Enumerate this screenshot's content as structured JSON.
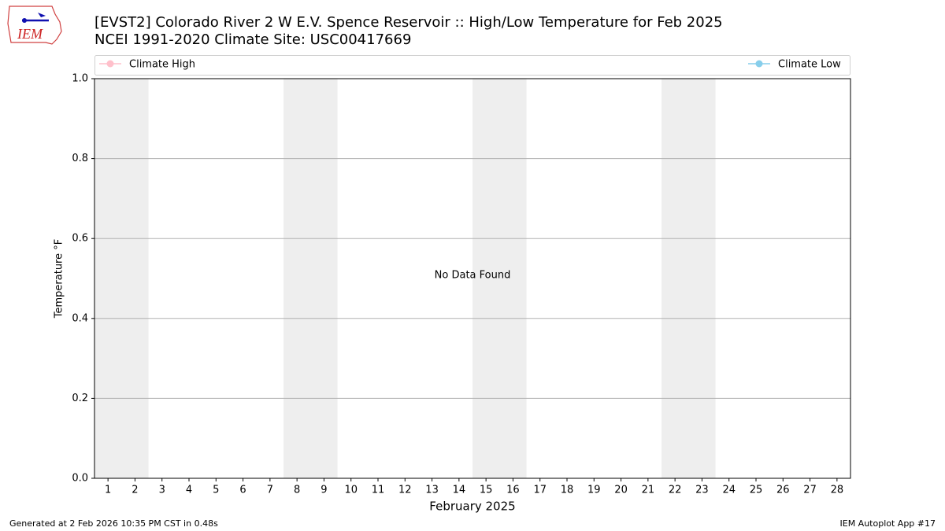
{
  "logo_text": "IEM",
  "footer_left": "Generated at 2 Feb 2026 10:35 PM CST in 0.48s",
  "footer_right": "IEM Autoplot App #17",
  "chart_data": {
    "type": "line",
    "title": "[EVST2] Colorado River 2 W E.V. Spence Reservoir :: High/Low Temperature for Feb 2025",
    "subtitle": "NCEI 1991-2020 Climate Site: USC00417669",
    "xlabel": "February 2025",
    "ylabel": "Temperature °F",
    "annotation": "No Data Found",
    "x": [
      1,
      2,
      3,
      4,
      5,
      6,
      7,
      8,
      9,
      10,
      11,
      12,
      13,
      14,
      15,
      16,
      17,
      18,
      19,
      20,
      21,
      22,
      23,
      24,
      25,
      26,
      27,
      28
    ],
    "xlim": [
      0.5,
      28.5
    ],
    "ylim": [
      0,
      1
    ],
    "yticks": [
      {
        "value": 0,
        "label": "0.0"
      },
      0.2,
      0.4,
      0.6,
      0.8,
      {
        "value": 1,
        "label": "1.0"
      }
    ],
    "grid": true,
    "series": [
      {
        "name": "Climate High",
        "color": "#ffc0cb",
        "values": [
          null,
          null,
          null,
          null,
          null,
          null,
          null,
          null,
          null,
          null,
          null,
          null,
          null,
          null,
          null,
          null,
          null,
          null,
          null,
          null,
          null,
          null,
          null,
          null,
          null,
          null,
          null,
          null
        ]
      },
      {
        "name": "Climate Low",
        "color": "#87ceeb",
        "values": [
          null,
          null,
          null,
          null,
          null,
          null,
          null,
          null,
          null,
          null,
          null,
          null,
          null,
          null,
          null,
          null,
          null,
          null,
          null,
          null,
          null,
          null,
          null,
          null,
          null,
          null,
          null,
          null
        ]
      }
    ]
  }
}
